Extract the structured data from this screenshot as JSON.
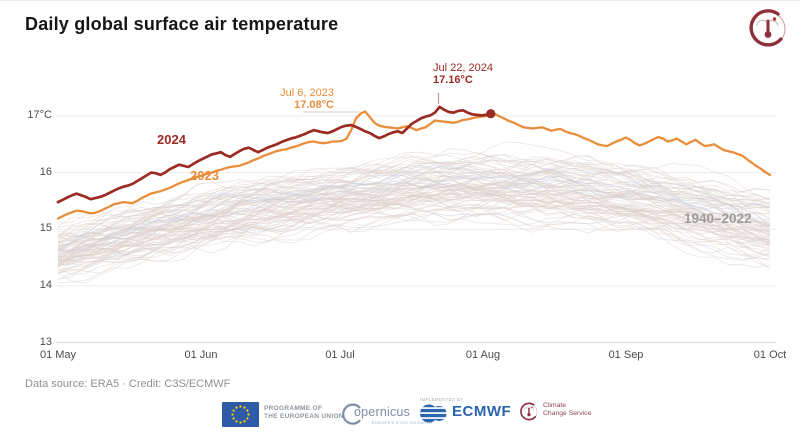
{
  "header": {
    "title": "Daily global surface air temperature",
    "logo": "c3s-thermometer-icon"
  },
  "chart_data": {
    "type": "line",
    "title": "Daily global surface air temperature",
    "unit": "°C",
    "grid": "horizontal",
    "x_axis": {
      "tick_labels": [
        "01 May",
        "01 Jun",
        "01 Jul",
        "01 Aug",
        "01 Sep",
        "01 Oct"
      ],
      "range_days": [
        0,
        153
      ],
      "day0": "May 1"
    },
    "y_axis": {
      "tick_labels": [
        "17°C",
        "16",
        "15",
        "14",
        "13"
      ],
      "values": [
        17,
        16,
        15,
        14,
        13
      ],
      "range": [
        13,
        17.6
      ]
    },
    "annotations": [
      {
        "date": "Jul 6, 2023",
        "value": "17.08°C",
        "day": 66,
        "temp": 17.08,
        "color": "#e88d3a"
      },
      {
        "date": "Jul 22, 2024",
        "value": "17.16°C",
        "day": 82,
        "temp": 17.16,
        "color": "#9b2b22"
      }
    ],
    "series": [
      {
        "name": "1940–2022",
        "type": "ensemble",
        "count": 83,
        "color": "#ddcfca",
        "envelope": {
          "days": [
            0,
            15,
            31,
            46,
            61,
            76,
            92,
            107,
            123,
            138,
            153
          ],
          "min": [
            14.0,
            14.25,
            14.5,
            14.72,
            14.88,
            15.0,
            15.02,
            14.95,
            14.8,
            14.5,
            14.15
          ],
          "max": [
            15.12,
            15.5,
            15.85,
            16.1,
            16.3,
            16.45,
            16.52,
            16.48,
            16.3,
            16.1,
            15.88
          ]
        }
      },
      {
        "name": "2023",
        "type": "line",
        "color": "#e88d3a",
        "points": [
          [
            0,
            15.19
          ],
          [
            1,
            15.23
          ],
          [
            2,
            15.27
          ],
          [
            3,
            15.3
          ],
          [
            4,
            15.33
          ],
          [
            5,
            15.32
          ],
          [
            6,
            15.3
          ],
          [
            7,
            15.28
          ],
          [
            8,
            15.29
          ],
          [
            9,
            15.32
          ],
          [
            10,
            15.36
          ],
          [
            11,
            15.4
          ],
          [
            12,
            15.44
          ],
          [
            13,
            15.46
          ],
          [
            14,
            15.48
          ],
          [
            15,
            15.47
          ],
          [
            16,
            15.46
          ],
          [
            17,
            15.5
          ],
          [
            18,
            15.55
          ],
          [
            19,
            15.59
          ],
          [
            20,
            15.63
          ],
          [
            21,
            15.65
          ],
          [
            22,
            15.67
          ],
          [
            23,
            15.7
          ],
          [
            24,
            15.73
          ],
          [
            25,
            15.77
          ],
          [
            26,
            15.81
          ],
          [
            27,
            15.84
          ],
          [
            28,
            15.87
          ],
          [
            29,
            15.9
          ],
          [
            30,
            15.93
          ],
          [
            31,
            15.95
          ],
          [
            32,
            15.98
          ],
          [
            33,
            16.0
          ],
          [
            34,
            16.03
          ],
          [
            35,
            16.05
          ],
          [
            36,
            16.08
          ],
          [
            37,
            16.1
          ],
          [
            38,
            16.11
          ],
          [
            39,
            16.12
          ],
          [
            40,
            16.15
          ],
          [
            41,
            16.18
          ],
          [
            42,
            16.22
          ],
          [
            43,
            16.25
          ],
          [
            44,
            16.29
          ],
          [
            45,
            16.32
          ],
          [
            46,
            16.35
          ],
          [
            47,
            16.38
          ],
          [
            48,
            16.4
          ],
          [
            49,
            16.41
          ],
          [
            50,
            16.44
          ],
          [
            51,
            16.46
          ],
          [
            52,
            16.49
          ],
          [
            53,
            16.52
          ],
          [
            54,
            16.54
          ],
          [
            55,
            16.55
          ],
          [
            56,
            16.53
          ],
          [
            57,
            16.52
          ],
          [
            58,
            16.53
          ],
          [
            59,
            16.55
          ],
          [
            60,
            16.55
          ],
          [
            61,
            16.56
          ],
          [
            62,
            16.6
          ],
          [
            63,
            16.75
          ],
          [
            64,
            16.95
          ],
          [
            65,
            17.04
          ],
          [
            66,
            17.08
          ],
          [
            67,
            16.98
          ],
          [
            68,
            16.88
          ],
          [
            69,
            16.83
          ],
          [
            70,
            16.81
          ],
          [
            71,
            16.8
          ],
          [
            72,
            16.79
          ],
          [
            73,
            16.78
          ],
          [
            74,
            16.8
          ],
          [
            75,
            16.82
          ],
          [
            76,
            16.79
          ],
          [
            77,
            16.75
          ],
          [
            78,
            16.78
          ],
          [
            79,
            16.8
          ],
          [
            80,
            16.86
          ],
          [
            81,
            16.92
          ],
          [
            82,
            16.91
          ],
          [
            83,
            16.9
          ],
          [
            84,
            16.89
          ],
          [
            85,
            16.88
          ],
          [
            86,
            16.9
          ],
          [
            87,
            16.93
          ],
          [
            88,
            16.94
          ],
          [
            89,
            16.96
          ],
          [
            90,
            16.98
          ],
          [
            91,
            16.99
          ],
          [
            92,
            17.0
          ],
          [
            93,
            17.02
          ],
          [
            94,
            17.03
          ],
          [
            95,
            16.99
          ],
          [
            96,
            16.95
          ],
          [
            97,
            16.91
          ],
          [
            98,
            16.88
          ],
          [
            99,
            16.84
          ],
          [
            100,
            16.8
          ],
          [
            101,
            16.79
          ],
          [
            102,
            16.78
          ],
          [
            103,
            16.79
          ],
          [
            104,
            16.8
          ],
          [
            105,
            16.77
          ],
          [
            106,
            16.74
          ],
          [
            107,
            16.76
          ],
          [
            108,
            16.77
          ],
          [
            109,
            16.73
          ],
          [
            110,
            16.7
          ],
          [
            111,
            16.68
          ],
          [
            112,
            16.65
          ],
          [
            113,
            16.61
          ],
          [
            114,
            16.58
          ],
          [
            115,
            16.54
          ],
          [
            116,
            16.5
          ],
          [
            117,
            16.48
          ],
          [
            118,
            16.47
          ],
          [
            119,
            16.51
          ],
          [
            120,
            16.55
          ],
          [
            121,
            16.58
          ],
          [
            122,
            16.62
          ],
          [
            123,
            16.58
          ],
          [
            124,
            16.52
          ],
          [
            125,
            16.48
          ],
          [
            126,
            16.51
          ],
          [
            127,
            16.55
          ],
          [
            128,
            16.59
          ],
          [
            129,
            16.63
          ],
          [
            130,
            16.6
          ],
          [
            131,
            16.55
          ],
          [
            132,
            16.57
          ],
          [
            133,
            16.6
          ],
          [
            134,
            16.55
          ],
          [
            135,
            16.5
          ],
          [
            136,
            16.54
          ],
          [
            137,
            16.58
          ],
          [
            138,
            16.52
          ],
          [
            139,
            16.47
          ],
          [
            140,
            16.48
          ],
          [
            141,
            16.5
          ],
          [
            142,
            16.45
          ],
          [
            143,
            16.4
          ],
          [
            144,
            16.38
          ],
          [
            145,
            16.36
          ],
          [
            146,
            16.33
          ],
          [
            147,
            16.3
          ],
          [
            148,
            16.24
          ],
          [
            149,
            16.18
          ],
          [
            150,
            16.12
          ],
          [
            151,
            16.07
          ],
          [
            152,
            16.01
          ],
          [
            153,
            15.96
          ]
        ]
      },
      {
        "name": "2024",
        "type": "line",
        "color": "#9b2b22",
        "end_dot": true,
        "points": [
          [
            0,
            15.48
          ],
          [
            1,
            15.52
          ],
          [
            2,
            15.56
          ],
          [
            3,
            15.6
          ],
          [
            4,
            15.63
          ],
          [
            5,
            15.6
          ],
          [
            6,
            15.57
          ],
          [
            7,
            15.53
          ],
          [
            8,
            15.55
          ],
          [
            9,
            15.57
          ],
          [
            10,
            15.6
          ],
          [
            11,
            15.64
          ],
          [
            12,
            15.68
          ],
          [
            13,
            15.72
          ],
          [
            14,
            15.75
          ],
          [
            15,
            15.77
          ],
          [
            16,
            15.8
          ],
          [
            17,
            15.85
          ],
          [
            18,
            15.9
          ],
          [
            19,
            15.95
          ],
          [
            20,
            16.0
          ],
          [
            21,
            15.99
          ],
          [
            22,
            15.96
          ],
          [
            23,
            16.0
          ],
          [
            24,
            16.06
          ],
          [
            25,
            16.1
          ],
          [
            26,
            16.14
          ],
          [
            27,
            16.12
          ],
          [
            28,
            16.1
          ],
          [
            29,
            16.15
          ],
          [
            30,
            16.2
          ],
          [
            31,
            16.24
          ],
          [
            32,
            16.28
          ],
          [
            33,
            16.32
          ],
          [
            34,
            16.34
          ],
          [
            35,
            16.36
          ],
          [
            36,
            16.31
          ],
          [
            37,
            16.28
          ],
          [
            38,
            16.33
          ],
          [
            39,
            16.38
          ],
          [
            40,
            16.42
          ],
          [
            41,
            16.44
          ],
          [
            42,
            16.4
          ],
          [
            43,
            16.36
          ],
          [
            44,
            16.4
          ],
          [
            45,
            16.44
          ],
          [
            46,
            16.47
          ],
          [
            47,
            16.5
          ],
          [
            48,
            16.54
          ],
          [
            49,
            16.57
          ],
          [
            50,
            16.6
          ],
          [
            51,
            16.62
          ],
          [
            52,
            16.65
          ],
          [
            53,
            16.68
          ],
          [
            54,
            16.72
          ],
          [
            55,
            16.75
          ],
          [
            56,
            16.73
          ],
          [
            57,
            16.71
          ],
          [
            58,
            16.7
          ],
          [
            59,
            16.73
          ],
          [
            60,
            16.77
          ],
          [
            61,
            16.81
          ],
          [
            62,
            16.83
          ],
          [
            63,
            16.84
          ],
          [
            64,
            16.81
          ],
          [
            65,
            16.77
          ],
          [
            66,
            16.73
          ],
          [
            67,
            16.7
          ],
          [
            68,
            16.65
          ],
          [
            69,
            16.61
          ],
          [
            70,
            16.64
          ],
          [
            71,
            16.68
          ],
          [
            72,
            16.71
          ],
          [
            73,
            16.73
          ],
          [
            74,
            16.7
          ],
          [
            75,
            16.78
          ],
          [
            76,
            16.86
          ],
          [
            77,
            16.91
          ],
          [
            78,
            16.96
          ],
          [
            79,
            16.99
          ],
          [
            80,
            17.01
          ],
          [
            81,
            17.06
          ],
          [
            82,
            17.16
          ],
          [
            83,
            17.11
          ],
          [
            84,
            17.07
          ],
          [
            85,
            17.06
          ],
          [
            86,
            17.09
          ],
          [
            87,
            17.1
          ],
          [
            88,
            17.06
          ],
          [
            89,
            17.03
          ],
          [
            90,
            17.02
          ],
          [
            91,
            17.01
          ],
          [
            92,
            17.02
          ],
          [
            93,
            17.04
          ]
        ]
      }
    ]
  },
  "footer": {
    "credit": "Data source: ERA5 · Credit: C3S/ECMWF",
    "logos": {
      "eu": {
        "name": "eu-flag",
        "color": "#2d5ba8",
        "star_color": "#ffcc00",
        "caption1": "PROGRAMME OF",
        "caption2": "THE EUROPEAN UNION"
      },
      "copernicus": {
        "text": "opernicus",
        "tagline": "EUROPE'S EYES ON EARTH",
        "color": "#7b8ea6"
      },
      "ecmwf": {
        "implemented_by": "IMPLEMENTED BY",
        "text": "ECMWF",
        "color": "#2a65ae"
      },
      "c3s": {
        "line1": "Climate",
        "line2": "Change Service",
        "color": "#8f4450"
      }
    }
  }
}
